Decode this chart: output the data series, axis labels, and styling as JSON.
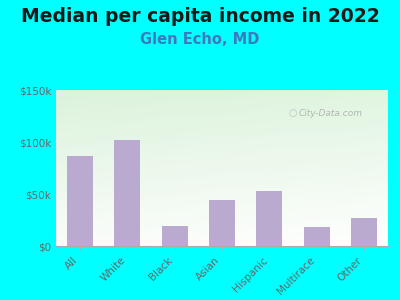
{
  "title": "Median per capita income in 2022",
  "subtitle": "Glen Echo, MD",
  "categories": [
    "All",
    "White",
    "Black",
    "Asian",
    "Hispanic",
    "Multirace",
    "Other"
  ],
  "values": [
    87000,
    102000,
    19000,
    44000,
    53000,
    18000,
    27000
  ],
  "bar_color": "#bbaad0",
  "background_outer": "#00ffff",
  "title_color": "#1a1a1a",
  "subtitle_color": "#3a7abf",
  "tick_color": "#666666",
  "ylim": [
    0,
    150000
  ],
  "yticks": [
    0,
    50000,
    100000,
    150000
  ],
  "title_fontsize": 13.5,
  "subtitle_fontsize": 10.5,
  "watermark": "City-Data.com"
}
